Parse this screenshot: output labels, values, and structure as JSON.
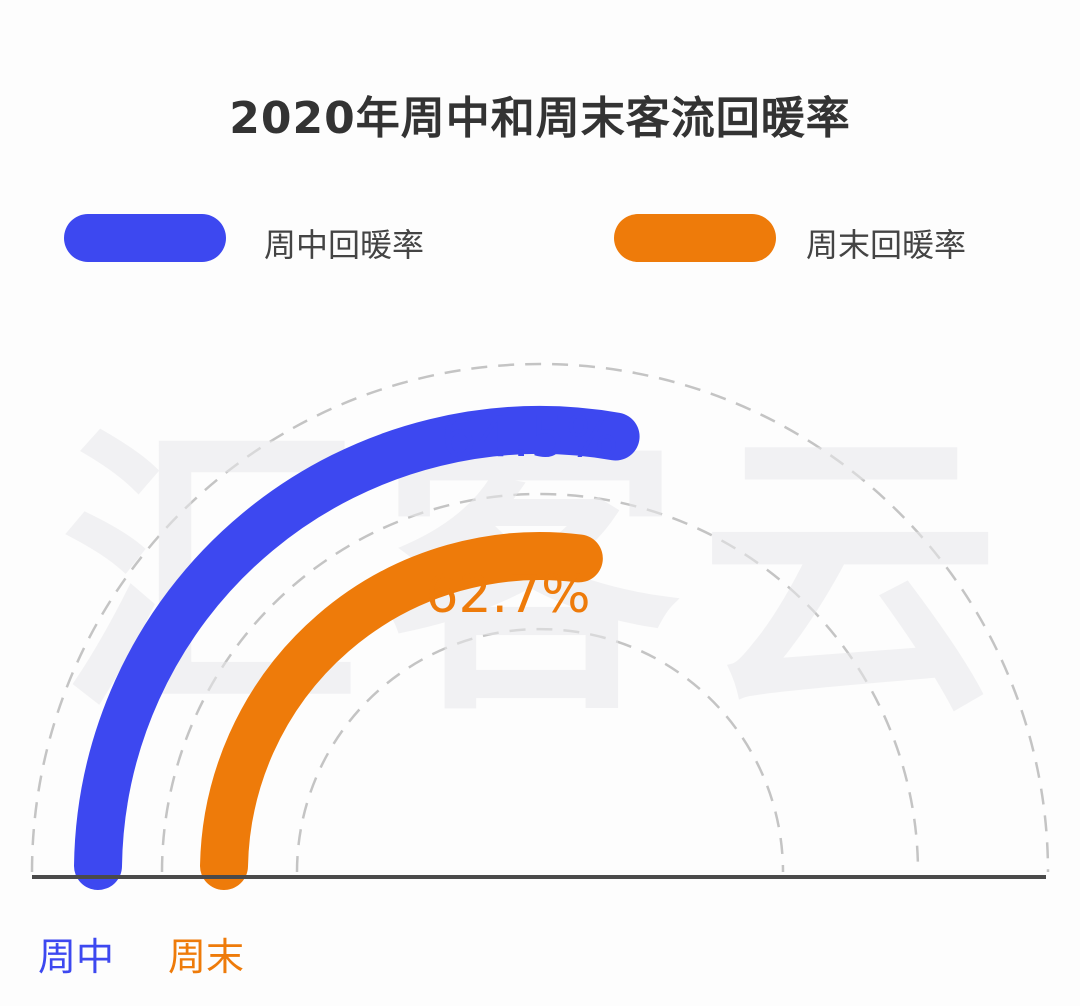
{
  "chart_data": {
    "type": "radial-bar",
    "title": "2020年周中和周末客流回暖率",
    "series": [
      {
        "name": "周中回暖率",
        "category": "周中",
        "value": 64.5,
        "label": "64.5%",
        "color": "#3d48f0"
      },
      {
        "name": "周末回暖率",
        "category": "周末",
        "value": 62.7,
        "label": "62.7%",
        "color": "#ee7b0a"
      }
    ],
    "axis_max": 100,
    "gridlines": "dashed-semicircles",
    "legend_position": "top"
  },
  "watermark": "汇客云"
}
